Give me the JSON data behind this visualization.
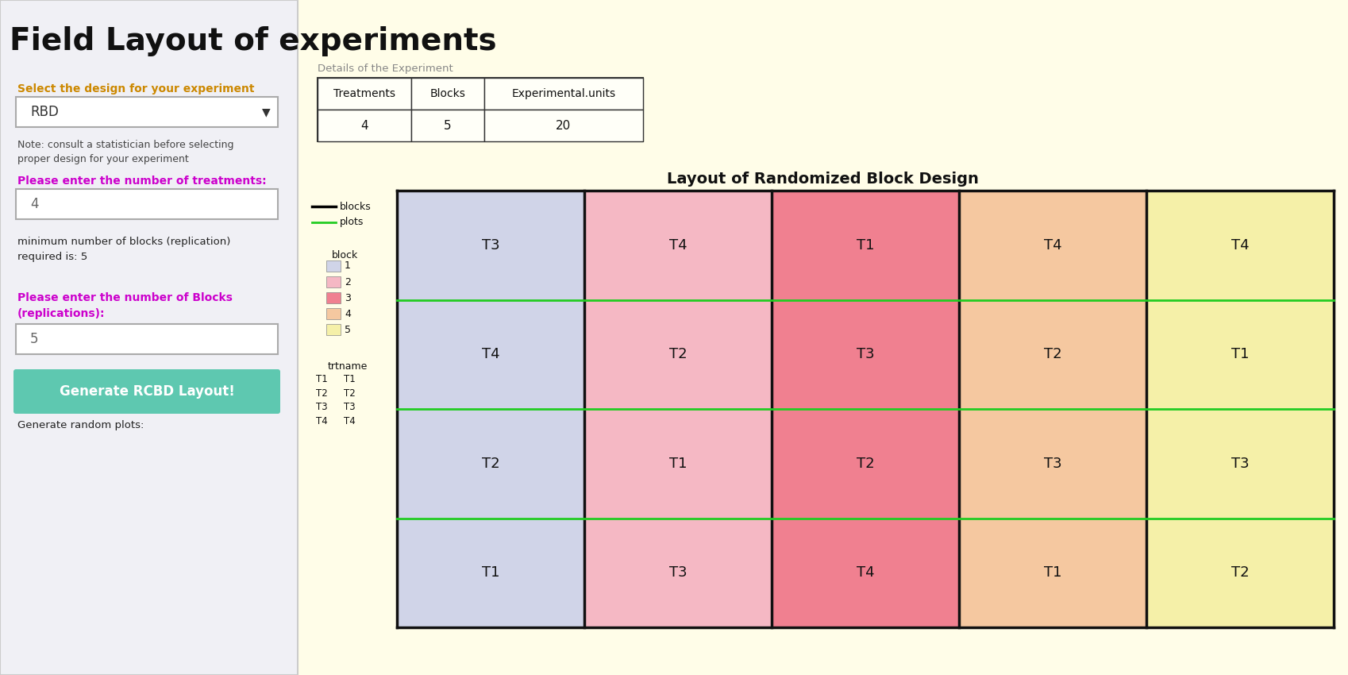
{
  "title": "Field Layout of experiments",
  "background_color": "#fffde0",
  "left_panel_color": "#f0f0f0",
  "left_panel_border": "#cccccc",
  "page_bg": "#fffde8",
  "details_label": "Details of the Experiment",
  "table_headers": [
    "Treatments",
    "Blocks",
    "Experimental.units"
  ],
  "table_values": [
    "4",
    "5",
    "20"
  ],
  "design_label": "Select the design for your experiment",
  "design_value": "RBD",
  "note_text": "Note: consult a statistician before selecting\nproper design for your experiment",
  "treatments_label": "Please enter the number of treatments:",
  "treatments_value": "4",
  "blocks_label": "Please enter the number of Blocks\n(replications):",
  "blocks_value": "5",
  "min_blocks_label": "minimum number of blocks (replication)\nrequired is: 5",
  "button_text": "Generate RCBD Layout!",
  "button_color": "#5ec8b0",
  "random_plots_label": "Generate random plots:",
  "layout_title": "Layout of Randomized Block Design",
  "grid_data": [
    [
      "T3",
      "T4",
      "T1",
      "T4",
      "T4"
    ],
    [
      "T4",
      "T2",
      "T3",
      "T2",
      "T1"
    ],
    [
      "T2",
      "T1",
      "T2",
      "T3",
      "T3"
    ],
    [
      "T1",
      "T3",
      "T4",
      "T1",
      "T2"
    ]
  ],
  "block_colors": [
    "#d0d4e8",
    "#f5b8c4",
    "#f08090",
    "#f5c8a0",
    "#f5f0a8"
  ],
  "block_colors_legend": [
    "#d0d4e8",
    "#f5b8c4",
    "#f08090",
    "#f5c8a0",
    "#f5f0a8"
  ],
  "green_line_color": "#22cc22",
  "block_border_color": "#111111",
  "label_color_design": "#cc8800",
  "label_color_treatments": "#cc00cc",
  "label_color_blocks": "#cc00cc",
  "legend_blocks_label": "blocks",
  "legend_plots_label": "plots",
  "legend_block_nums": [
    "1",
    "2",
    "3",
    "4",
    "5"
  ],
  "trtname_label": "trtname",
  "trt_legend": [
    [
      "T1",
      "T1"
    ],
    [
      "T2",
      "T2"
    ],
    [
      "T3",
      "T3"
    ],
    [
      "T4",
      "T4"
    ]
  ]
}
